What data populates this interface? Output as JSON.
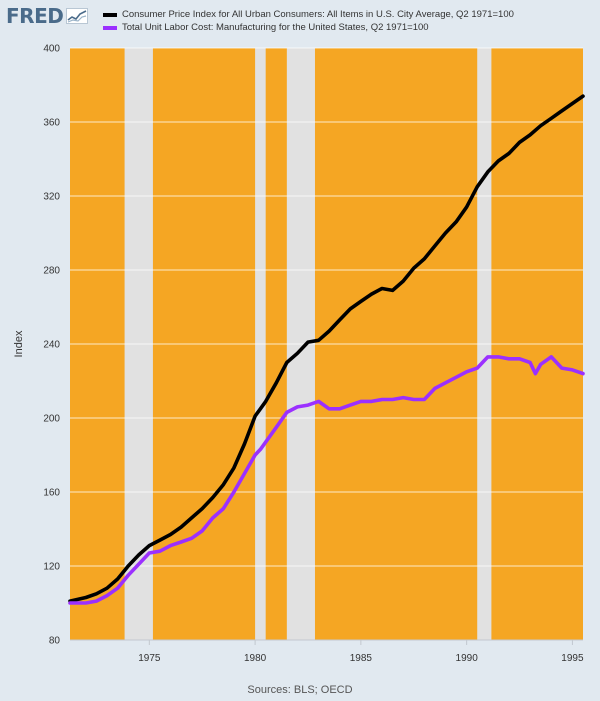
{
  "header": {
    "logo_text": "FRED"
  },
  "footer": {
    "source": "Sources: BLS; OECD"
  },
  "colors": {
    "background": "#e1e9f0",
    "plot_background": "#f5a623",
    "recession_shading": "#e1e1e1",
    "series_cpi": "#000000",
    "series_ulc": "#9b30ff"
  },
  "chart_data": {
    "type": "line",
    "ylabel": "Index",
    "xlabel": "",
    "xlim": [
      1971.25,
      1995.5
    ],
    "ylim": [
      80,
      400
    ],
    "x_ticks": [
      1975,
      1980,
      1985,
      1990,
      1995
    ],
    "y_ticks": [
      80,
      120,
      160,
      200,
      240,
      280,
      320,
      360,
      400
    ],
    "grid": true,
    "legend_position": "top",
    "recessions": [
      [
        1973.83,
        1975.17
      ],
      [
        1980.0,
        1980.5
      ],
      [
        1981.5,
        1982.83
      ],
      [
        1990.5,
        1991.17
      ]
    ],
    "series": [
      {
        "name": "Consumer Price Index for All Urban Consumers: All Items in U.S. City Average, Q2 1971=100",
        "color": "#000000",
        "x": [
          1971.25,
          1972.0,
          1972.5,
          1973.0,
          1973.5,
          1974.0,
          1974.5,
          1975.0,
          1975.5,
          1976.0,
          1976.5,
          1977.0,
          1977.5,
          1978.0,
          1978.5,
          1979.0,
          1979.5,
          1980.0,
          1980.25,
          1980.5,
          1981.0,
          1981.5,
          1982.0,
          1982.5,
          1983.0,
          1983.5,
          1984.0,
          1984.5,
          1985.0,
          1985.5,
          1986.0,
          1986.5,
          1987.0,
          1987.5,
          1988.0,
          1988.5,
          1989.0,
          1989.5,
          1990.0,
          1990.5,
          1991.0,
          1991.5,
          1992.0,
          1992.5,
          1993.0,
          1993.5,
          1994.0,
          1994.5,
          1995.0,
          1995.5
        ],
        "y": [
          101,
          103,
          105,
          108,
          113,
          120,
          126,
          131,
          134,
          137,
          141,
          146,
          151,
          157,
          164,
          173,
          186,
          201,
          205,
          209,
          219,
          230,
          235,
          241,
          242,
          247,
          253,
          259,
          263,
          267,
          270,
          269,
          274,
          281,
          286,
          293,
          300,
          306,
          314,
          325,
          333,
          339,
          343,
          349,
          353,
          358,
          362,
          366,
          370,
          374
        ]
      },
      {
        "name": "Total Unit Labor Cost: Manufacturing for the United States, Q2 1971=100",
        "color": "#9b30ff",
        "x": [
          1971.25,
          1972.0,
          1972.5,
          1973.0,
          1973.5,
          1974.0,
          1974.5,
          1975.0,
          1975.5,
          1976.0,
          1976.5,
          1977.0,
          1977.5,
          1978.0,
          1978.5,
          1979.0,
          1979.5,
          1980.0,
          1980.25,
          1980.5,
          1981.0,
          1981.5,
          1982.0,
          1982.5,
          1983.0,
          1983.5,
          1984.0,
          1984.5,
          1985.0,
          1985.5,
          1986.0,
          1986.5,
          1987.0,
          1987.5,
          1988.0,
          1988.5,
          1989.0,
          1989.5,
          1990.0,
          1990.5,
          1991.0,
          1991.5,
          1992.0,
          1992.5,
          1993.0,
          1993.25,
          1993.5,
          1994.0,
          1994.5,
          1995.0,
          1995.5
        ],
        "y": [
          100,
          100,
          101,
          104,
          108,
          115,
          121,
          127,
          128,
          131,
          133,
          135,
          139,
          146,
          151,
          160,
          170,
          180,
          183,
          187,
          195,
          203,
          206,
          207,
          209,
          205,
          205,
          207,
          209,
          209,
          210,
          210,
          211,
          210,
          210,
          216,
          219,
          222,
          225,
          227,
          233,
          233,
          232,
          232,
          230,
          224,
          229,
          233,
          227,
          226,
          224
        ]
      }
    ]
  }
}
